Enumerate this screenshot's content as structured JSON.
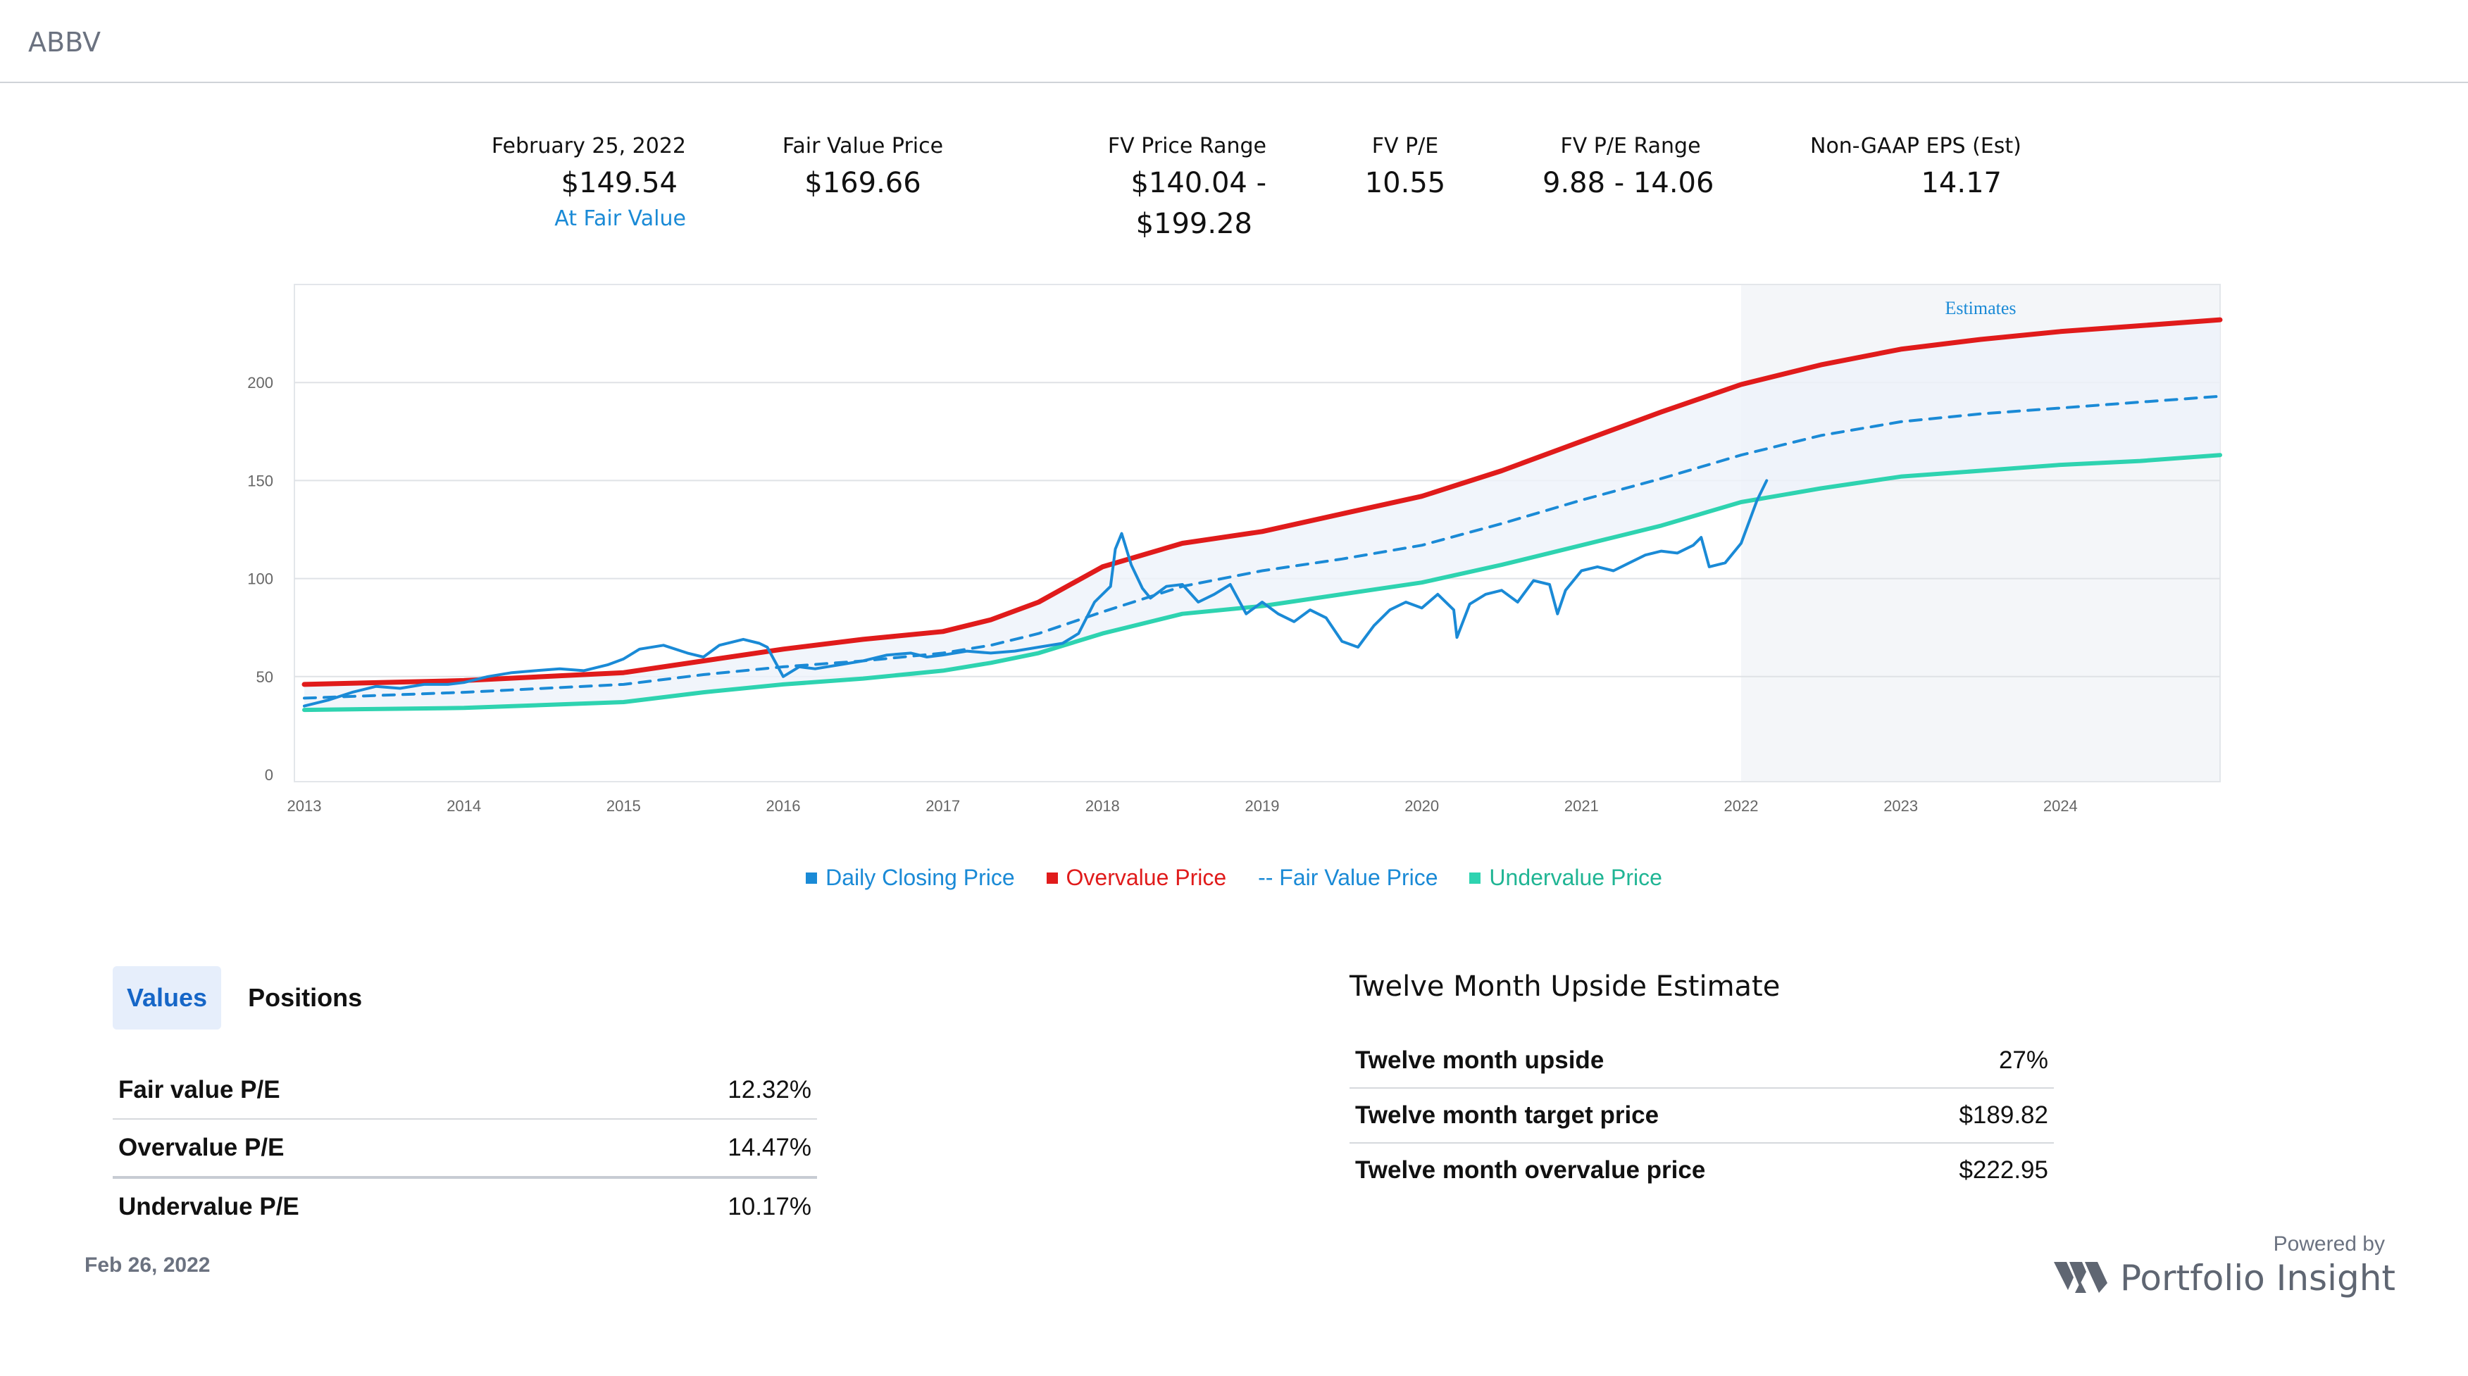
{
  "header": {
    "ticker": "ABBV"
  },
  "stats": {
    "date_label": "February 25, 2022",
    "price": "$149.54",
    "status": "At Fair Value",
    "fv_price_label": "Fair Value Price",
    "fv_price": "$169.66",
    "fv_range_label": "FV Price Range",
    "fv_range_line1": "$140.04  -",
    "fv_range_line2": "$199.28",
    "fv_pe_label": "FV P/E",
    "fv_pe": "10.55",
    "fv_pe_range_label": "FV P/E Range",
    "fv_pe_range": "9.88  - 14.06",
    "eps_label": "Non-GAAP EPS (Est)",
    "eps": "14.17"
  },
  "colors": {
    "daily": "#1a8ad6",
    "overvalue": "#e01b1b",
    "fair": "#1a8ad6",
    "undervalue": "#2ed3b0",
    "estimate_shade": "#f4f6f9"
  },
  "chart_data": {
    "type": "line",
    "annotation": "Estimates",
    "estimates_start": 2022.0,
    "x_ticks": [
      "2013",
      "2014",
      "2015",
      "2016",
      "2017",
      "2018",
      "2019",
      "2020",
      "2021",
      "2022",
      "2023",
      "2024"
    ],
    "y_ticks": [
      "0",
      "50",
      "100",
      "150",
      "200"
    ],
    "xlim": [
      2013.0,
      2025.0
    ],
    "ylim": [
      0,
      250
    ],
    "grid": true,
    "legend_position": "bottom",
    "series": [
      {
        "name": "Daily Closing Price",
        "x": [
          2013.0,
          2013.15,
          2013.3,
          2013.45,
          2013.6,
          2013.75,
          2013.9,
          2014.0,
          2014.15,
          2014.3,
          2014.45,
          2014.6,
          2014.75,
          2014.9,
          2015.0,
          2015.1,
          2015.25,
          2015.4,
          2015.5,
          2015.6,
          2015.75,
          2015.85,
          2015.9,
          2016.0,
          2016.1,
          2016.2,
          2016.35,
          2016.5,
          2016.65,
          2016.8,
          2016.9,
          2017.0,
          2017.15,
          2017.3,
          2017.45,
          2017.6,
          2017.75,
          2017.85,
          2017.95,
          2018.05,
          2018.08,
          2018.12,
          2018.18,
          2018.25,
          2018.3,
          2018.4,
          2018.5,
          2018.6,
          2018.7,
          2018.8,
          2018.9,
          2019.0,
          2019.1,
          2019.2,
          2019.3,
          2019.4,
          2019.5,
          2019.6,
          2019.7,
          2019.8,
          2019.9,
          2020.0,
          2020.1,
          2020.2,
          2020.22,
          2020.3,
          2020.4,
          2020.5,
          2020.6,
          2020.7,
          2020.8,
          2020.85,
          2020.9,
          2021.0,
          2021.1,
          2021.2,
          2021.3,
          2021.4,
          2021.5,
          2021.6,
          2021.7,
          2021.75,
          2021.8,
          2021.9,
          2022.0,
          2022.1,
          2022.16
        ],
        "values": [
          35,
          38,
          42,
          45,
          44,
          46,
          46,
          47,
          50,
          52,
          53,
          54,
          53,
          56,
          59,
          64,
          66,
          62,
          60,
          66,
          69,
          67,
          65,
          50,
          55,
          54,
          56,
          58,
          61,
          62,
          60,
          61,
          63,
          62,
          63,
          65,
          67,
          72,
          88,
          96,
          115,
          123,
          107,
          95,
          90,
          96,
          97,
          88,
          92,
          97,
          82,
          88,
          82,
          78,
          84,
          80,
          68,
          65,
          76,
          84,
          88,
          85,
          92,
          84,
          70,
          87,
          92,
          94,
          88,
          99,
          97,
          82,
          94,
          104,
          106,
          104,
          108,
          112,
          114,
          113,
          117,
          121,
          106,
          108,
          118,
          140,
          150
        ]
      },
      {
        "name": "Overvalue Price",
        "x": [
          2013,
          2014,
          2015,
          2015.5,
          2016,
          2016.5,
          2017,
          2017.3,
          2017.6,
          2018,
          2018.5,
          2019,
          2019.5,
          2020,
          2020.5,
          2021,
          2021.5,
          2022,
          2022.5,
          2023,
          2023.5,
          2024,
          2024.5,
          2025
        ],
        "values": [
          46,
          48,
          52,
          58,
          64,
          69,
          73,
          79,
          88,
          106,
          118,
          124,
          133,
          142,
          155,
          170,
          185,
          199,
          209,
          217,
          222,
          226,
          229,
          232
        ]
      },
      {
        "name": "Fair Value Price",
        "x": [
          2013,
          2014,
          2015,
          2015.5,
          2016,
          2016.5,
          2017,
          2017.3,
          2017.6,
          2018,
          2018.5,
          2019,
          2019.5,
          2020,
          2020.5,
          2021,
          2021.5,
          2022,
          2022.5,
          2023,
          2023.5,
          2024,
          2024.5,
          2025
        ],
        "values": [
          39,
          42,
          46,
          51,
          55,
          58,
          62,
          66,
          72,
          83,
          96,
          104,
          110,
          117,
          128,
          140,
          151,
          163,
          173,
          180,
          184,
          187,
          190,
          193
        ]
      },
      {
        "name": "Undervalue Price",
        "x": [
          2013,
          2014,
          2015,
          2015.5,
          2016,
          2016.5,
          2017,
          2017.3,
          2017.6,
          2018,
          2018.5,
          2019,
          2019.5,
          2020,
          2020.5,
          2021,
          2021.5,
          2022,
          2022.5,
          2023,
          2023.5,
          2024,
          2024.5,
          2025
        ],
        "values": [
          33,
          34,
          37,
          42,
          46,
          49,
          53,
          57,
          62,
          72,
          82,
          86,
          92,
          98,
          107,
          117,
          127,
          139,
          146,
          152,
          155,
          158,
          160,
          163
        ]
      }
    ]
  },
  "legend": {
    "daily": "Daily Closing Price",
    "overvalue": "Overvalue Price",
    "fair_prefix": "-- ",
    "fair": "Fair Value Price",
    "undervalue": "Undervalue Price"
  },
  "tabs": {
    "values": "Values",
    "positions": "Positions"
  },
  "values_table": [
    {
      "label": "Fair value P/E",
      "value": "12.32%"
    },
    {
      "label": "Overvalue P/E",
      "value": "14.47%"
    },
    {
      "label": "Undervalue P/E",
      "value": "10.17%"
    }
  ],
  "upside": {
    "title": "Twelve Month Upside Estimate",
    "rows": [
      {
        "label": "Twelve month upside",
        "value": "27%"
      },
      {
        "label": "Twelve month target price",
        "value": "$189.82"
      },
      {
        "label": "Twelve month overvalue price",
        "value": "$222.95"
      }
    ]
  },
  "footer": {
    "date": "Feb 26, 2022",
    "powered_by": "Powered by",
    "brand": "Portfolio Insight"
  }
}
